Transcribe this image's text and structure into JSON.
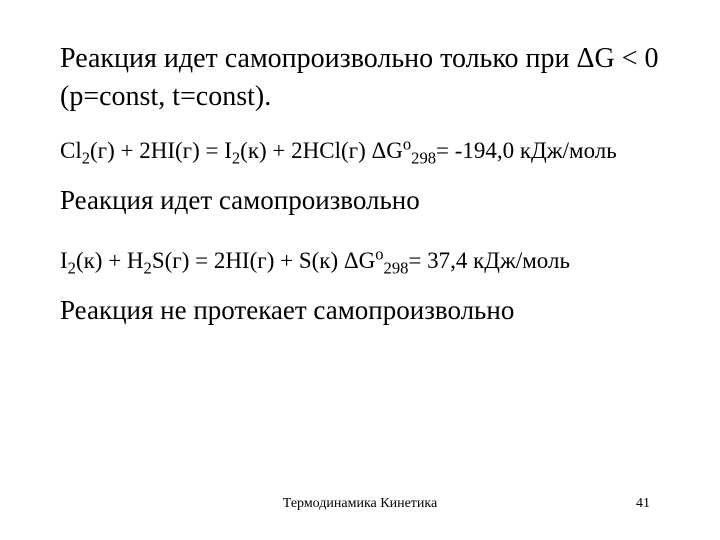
{
  "headline_part1": "Реакция идет самопроизвольно только при ",
  "headline_delta": "Δ",
  "headline_part2": "G < 0 (p=const, t=const).",
  "eq1": {
    "lhs_a": "Cl",
    "lhs_a_sub": "2",
    "lhs_a_phase": "(г) + 2HI(г) = I",
    "mid_sub": "2",
    "rhs": "(к) + 2HCl(г)  ",
    "dg": "ΔG",
    "sup": "o",
    "sub": "298",
    "val": "= -194,0 кДж/моль"
  },
  "stmt1": "Реакция идет самопроизвольно",
  "eq2": {
    "a": "I",
    "a_sub": "2",
    "b": "(к) + H",
    "b_sub": "2",
    "c": "S(г) = 2HI(г) + S(к)  ",
    "dg": "ΔG",
    "sup": "o",
    "sub": "298",
    "val": "= 37,4 кДж/моль"
  },
  "stmt2": "Реакция не протекает  самопроизвольно",
  "footer_center": "Термодинамика Кинетика",
  "footer_page": "41"
}
